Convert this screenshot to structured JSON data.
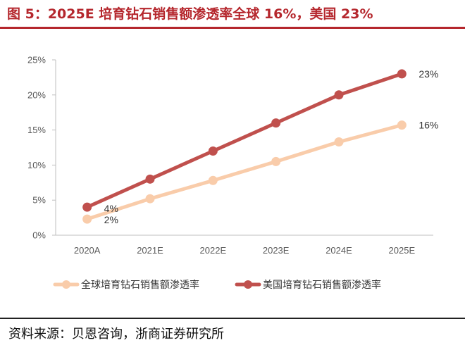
{
  "header": {
    "title": "图 5：2025E 培育钻石销售额渗透率全球 16%，美国 23%"
  },
  "footer": {
    "source": "资料来源：贝恩咨询，浙商证券研究所"
  },
  "colors": {
    "title": "#b5272d",
    "global_series": "#f9ccaa",
    "us_series": "#c0504d"
  },
  "chart_data": {
    "type": "line",
    "title": "",
    "xlabel": "",
    "ylabel": "",
    "categories": [
      "2020A",
      "2021E",
      "2022E",
      "2023E",
      "2024E",
      "2025E"
    ],
    "ylim": [
      0,
      25
    ],
    "yticks": [
      "0%",
      "5%",
      "10%",
      "15%",
      "20%",
      "25%"
    ],
    "grid": false,
    "legend_position": "bottom",
    "series": [
      {
        "name": "全球培育钻石销售额渗透率",
        "color": "#f9ccaa",
        "values": [
          2.3,
          5.2,
          7.8,
          10.5,
          13.3,
          15.7
        ],
        "labels": [
          "2%",
          "",
          "",
          "",
          "",
          "16%"
        ]
      },
      {
        "name": "美国培育钻石销售额渗透率",
        "color": "#c0504d",
        "values": [
          4,
          8,
          12,
          16,
          20,
          23
        ],
        "labels": [
          "4%",
          "",
          "",
          "",
          "",
          "23%"
        ]
      }
    ]
  }
}
